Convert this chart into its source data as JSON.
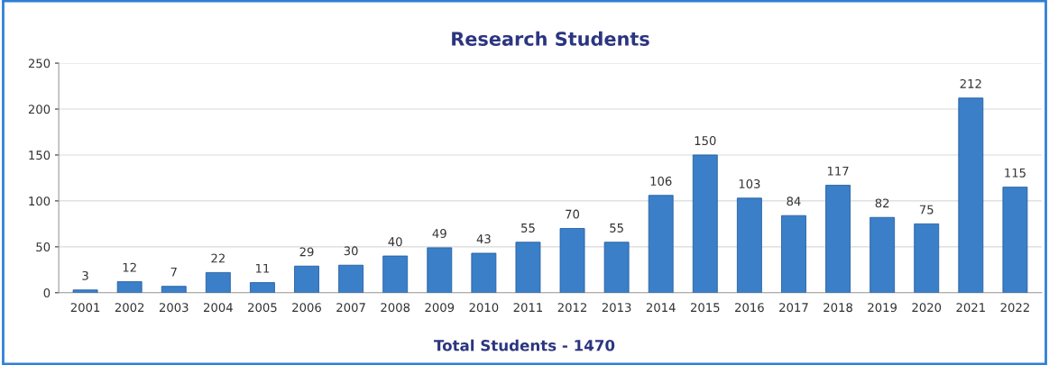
{
  "chart_data": {
    "type": "bar",
    "title": "Research Students",
    "categories": [
      "2001",
      "2002",
      "2003",
      "2004",
      "2005",
      "2006",
      "2007",
      "2008",
      "2009",
      "2010",
      "2011",
      "2012",
      "2013",
      "2014",
      "2015",
      "2016",
      "2017",
      "2018",
      "2019",
      "2020",
      "2021",
      "2022"
    ],
    "values": [
      3,
      12,
      7,
      22,
      11,
      29,
      30,
      40,
      49,
      43,
      55,
      70,
      55,
      106,
      150,
      103,
      84,
      117,
      82,
      75,
      212,
      115
    ],
    "color": "#3b7fc9",
    "ylim": [
      0,
      250
    ],
    "yticks": [
      0,
      50,
      100,
      150,
      200,
      250
    ],
    "grid": "y",
    "data_labels": true,
    "annotations": [
      "Total Students - 1470"
    ]
  }
}
